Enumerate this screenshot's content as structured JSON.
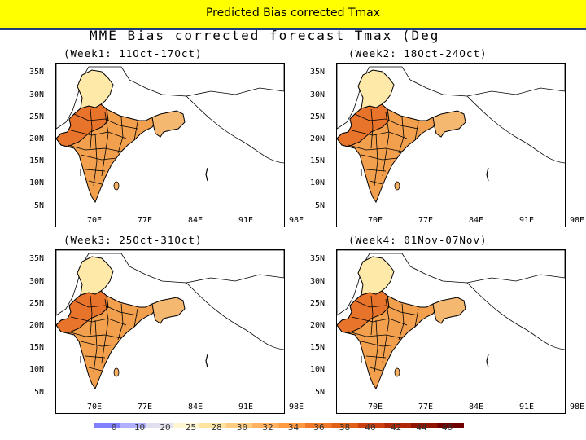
{
  "slide": {
    "title": "Predicted Bias corrected Tmax",
    "map_title": "MME Bias corrected forecast Tmax (Deg"
  },
  "panels": [
    {
      "title": "(Week1: 11Oct-17Oct)"
    },
    {
      "title": "(Week2: 18Oct-24Oct)"
    },
    {
      "title": "(Week3: 25Oct-31Oct)"
    },
    {
      "title": "(Week4: 01Nov-07Nov)"
    }
  ],
  "axes": {
    "lat_labels": [
      "35N",
      "30N",
      "25N",
      "20N",
      "15N",
      "10N",
      "5N"
    ],
    "lon_labels": [
      "70E",
      "77E",
      "84E",
      "91E",
      "98E"
    ]
  },
  "colorbar": {
    "labels": [
      "0",
      "10",
      "20",
      "25",
      "28",
      "30",
      "32",
      "34",
      "36",
      "38",
      "40",
      "42",
      "44",
      "46"
    ],
    "colors": [
      "#8080ff",
      "#b0b0ff",
      "#e0e0f0",
      "#fff5d0",
      "#ffe4a0",
      "#ffcc80",
      "#ffb060",
      "#ff9a40",
      "#f07828",
      "#e06018",
      "#cc4010",
      "#b02808",
      "#901400",
      "#700000"
    ]
  },
  "map_colors": {
    "north_hills": "#ffe9a8",
    "northwest": "#e8742c",
    "main_land": "#f2a04e",
    "south": "#f5b062",
    "northeast": "#f4b870",
    "boundaries": "#000000"
  }
}
